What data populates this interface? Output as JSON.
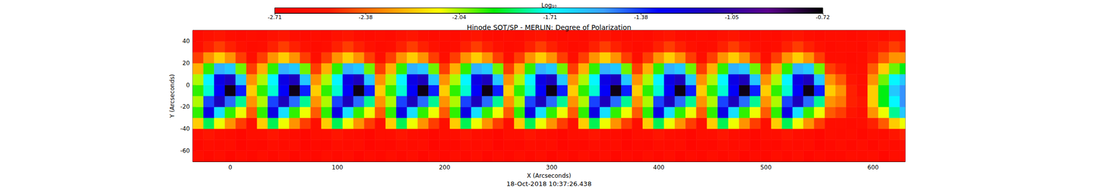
{
  "chart_data": {
    "type": "heatmap",
    "title": "Hinode SOT/SP - MERLIN: Degree of Polarization",
    "xlabel": "X (Arcseconds)",
    "ylabel": "Y (Arcseconds)",
    "annotation": "18-Oct-2018 10:37:26.438",
    "xlim": [
      -35,
      630
    ],
    "ylim": [
      -70,
      50
    ],
    "xticks": [
      0,
      100,
      200,
      300,
      400,
      500,
      600
    ],
    "yticks": [
      -60,
      -40,
      -20,
      0,
      20,
      40
    ],
    "grid": false,
    "colorbar": {
      "label": "Log₁₀",
      "range": [
        -2.71,
        -0.72
      ],
      "ticks": [
        -2.71,
        -2.38,
        -2.04,
        -1.71,
        -1.38,
        -1.05,
        -0.72
      ]
    },
    "x": [
      -30,
      -20,
      -10,
      0,
      10,
      20,
      30,
      40,
      50,
      60,
      70,
      80,
      90,
      100,
      110,
      120,
      130,
      140,
      150,
      160,
      170,
      180,
      190,
      200,
      210,
      220,
      230,
      240,
      250,
      260,
      270,
      280,
      290,
      300,
      310,
      320,
      330,
      340,
      350,
      360,
      370,
      380,
      390,
      400,
      410,
      420,
      430,
      440,
      450,
      460,
      470,
      480,
      490,
      500,
      510,
      520,
      530,
      540,
      550,
      560,
      570,
      580,
      590,
      600,
      610,
      620,
      630
    ],
    "y": [
      -65,
      -55,
      -45,
      -35,
      -25,
      -15,
      -5,
      5,
      15,
      25,
      35,
      45
    ],
    "values": [
      [
        -2.6,
        -2.63,
        -2.6,
        -2.65,
        -2.62,
        -2.64,
        -2.6,
        -2.63,
        -2.6,
        -2.65,
        -2.62,
        -2.64,
        -2.6,
        -2.63,
        -2.6,
        -2.65,
        -2.62,
        -2.64,
        -2.6,
        -2.63,
        -2.6,
        -2.65,
        -2.62,
        -2.64,
        -2.6,
        -2.63,
        -2.6,
        -2.65,
        -2.62,
        -2.64,
        -2.6,
        -2.63,
        -2.6,
        -2.65,
        -2.62,
        -2.64,
        -2.6,
        -2.63,
        -2.6,
        -2.65,
        -2.62,
        -2.64,
        -2.6,
        -2.63,
        -2.6,
        -2.65,
        -2.62,
        -2.64,
        -2.6,
        -2.63,
        -2.6,
        -2.65,
        -2.62,
        -2.64,
        -2.6,
        -2.63,
        -2.6,
        -2.65,
        -2.62,
        -2.64,
        -2.63,
        -2.6,
        -2.62,
        -2.6,
        -2.65,
        -2.6,
        -2.62
      ],
      [
        -2.64,
        -2.6,
        -2.62,
        -2.6,
        -2.66,
        -2.63,
        -2.64,
        -2.6,
        -2.62,
        -2.6,
        -2.66,
        -2.63,
        -2.64,
        -2.6,
        -2.62,
        -2.6,
        -2.66,
        -2.63,
        -2.64,
        -2.6,
        -2.62,
        -2.6,
        -2.66,
        -2.63,
        -2.64,
        -2.6,
        -2.62,
        -2.6,
        -2.66,
        -2.63,
        -2.64,
        -2.6,
        -2.62,
        -2.6,
        -2.66,
        -2.63,
        -2.64,
        -2.6,
        -2.62,
        -2.6,
        -2.66,
        -2.63,
        -2.64,
        -2.6,
        -2.62,
        -2.6,
        -2.66,
        -2.63,
        -2.64,
        -2.6,
        -2.62,
        -2.6,
        -2.66,
        -2.63,
        -2.64,
        -2.6,
        -2.62,
        -2.6,
        -2.66,
        -2.63,
        -2.6,
        -2.63,
        -2.6,
        -2.64,
        -2.6,
        -2.62,
        -2.6
      ],
      [
        -2.6,
        -2.55,
        -2.6,
        -2.62,
        -2.65,
        -2.6,
        -2.6,
        -2.55,
        -2.6,
        -2.62,
        -2.65,
        -2.6,
        -2.6,
        -2.55,
        -2.6,
        -2.62,
        -2.65,
        -2.6,
        -2.6,
        -2.55,
        -2.6,
        -2.62,
        -2.65,
        -2.6,
        -2.6,
        -2.55,
        -2.6,
        -2.62,
        -2.65,
        -2.6,
        -2.6,
        -2.55,
        -2.6,
        -2.62,
        -2.65,
        -2.6,
        -2.6,
        -2.55,
        -2.6,
        -2.62,
        -2.65,
        -2.6,
        -2.6,
        -2.55,
        -2.6,
        -2.62,
        -2.65,
        -2.6,
        -2.6,
        -2.55,
        -2.6,
        -2.62,
        -2.65,
        -2.6,
        -2.6,
        -2.55,
        -2.6,
        -2.62,
        -2.65,
        -2.6,
        -2.62,
        -2.6,
        -2.64,
        -2.6,
        -2.62,
        -2.55,
        -2.5
      ],
      [
        -2.2,
        -1.85,
        -2.1,
        -2.3,
        -2.45,
        -2.6,
        -2.2,
        -1.85,
        -2.1,
        -2.3,
        -2.45,
        -2.6,
        -2.2,
        -1.85,
        -2.1,
        -2.3,
        -2.45,
        -2.6,
        -2.2,
        -1.85,
        -2.1,
        -2.3,
        -2.45,
        -2.6,
        -2.2,
        -1.85,
        -2.1,
        -2.3,
        -2.45,
        -2.6,
        -2.2,
        -1.85,
        -2.1,
        -2.3,
        -2.45,
        -2.6,
        -2.2,
        -1.85,
        -2.1,
        -2.3,
        -2.45,
        -2.6,
        -2.2,
        -1.85,
        -2.1,
        -2.3,
        -2.45,
        -2.6,
        -2.2,
        -1.85,
        -2.1,
        -2.3,
        -2.45,
        -2.6,
        -2.2,
        -1.85,
        -2.1,
        -2.3,
        -2.45,
        -2.6,
        -2.6,
        -2.62,
        -2.6,
        -2.5,
        -2.4,
        -2.2,
        -2.1
      ],
      [
        -1.95,
        -1.25,
        -1.65,
        -1.95,
        -2.1,
        -2.4,
        -1.95,
        -1.25,
        -1.65,
        -1.95,
        -2.1,
        -2.4,
        -1.95,
        -1.25,
        -1.65,
        -1.95,
        -2.1,
        -2.4,
        -1.95,
        -1.25,
        -1.65,
        -1.95,
        -2.1,
        -2.4,
        -1.95,
        -1.25,
        -1.65,
        -1.95,
        -2.1,
        -2.4,
        -1.95,
        -1.25,
        -1.65,
        -1.95,
        -2.1,
        -2.4,
        -1.95,
        -1.25,
        -1.65,
        -1.95,
        -2.1,
        -2.4,
        -1.95,
        -1.25,
        -1.65,
        -1.95,
        -2.1,
        -2.4,
        -1.95,
        -1.25,
        -1.65,
        -1.95,
        -2.1,
        -2.4,
        -1.95,
        -1.25,
        -1.65,
        -1.95,
        -2.1,
        -2.4,
        -2.45,
        -2.55,
        -2.6,
        -2.3,
        -2.1,
        -1.8,
        -1.6
      ],
      [
        -2.05,
        -1.4,
        -1.15,
        -1.45,
        -1.8,
        -2.3,
        -2.05,
        -1.4,
        -1.15,
        -1.45,
        -1.8,
        -2.3,
        -2.05,
        -1.4,
        -1.15,
        -1.45,
        -1.8,
        -2.3,
        -2.05,
        -1.4,
        -1.15,
        -1.45,
        -1.8,
        -2.3,
        -2.05,
        -1.4,
        -1.15,
        -1.45,
        -1.8,
        -2.3,
        -2.05,
        -1.4,
        -1.15,
        -1.45,
        -1.8,
        -2.3,
        -2.05,
        -1.4,
        -1.15,
        -1.45,
        -1.8,
        -2.3,
        -2.05,
        -1.4,
        -1.15,
        -1.45,
        -1.8,
        -2.3,
        -2.05,
        -1.4,
        -1.15,
        -1.45,
        -1.8,
        -2.3,
        -2.05,
        -1.4,
        -1.15,
        -1.45,
        -1.8,
        -2.3,
        -2.35,
        -2.5,
        -2.55,
        -2.2,
        -1.9,
        -1.7,
        -1.5
      ],
      [
        -1.95,
        -1.75,
        -1.3,
        -0.75,
        -1.35,
        -2.2,
        -1.95,
        -1.75,
        -1.3,
        -0.75,
        -1.35,
        -2.2,
        -1.95,
        -1.75,
        -1.3,
        -0.75,
        -1.35,
        -2.2,
        -1.95,
        -1.75,
        -1.3,
        -0.75,
        -1.35,
        -2.2,
        -1.95,
        -1.75,
        -1.3,
        -0.75,
        -1.35,
        -2.2,
        -1.95,
        -1.75,
        -1.3,
        -0.75,
        -1.35,
        -2.2,
        -1.95,
        -1.75,
        -1.3,
        -0.75,
        -1.35,
        -2.2,
        -1.95,
        -1.75,
        -1.3,
        -0.75,
        -1.35,
        -2.2,
        -1.95,
        -1.75,
        -1.3,
        -0.75,
        -1.35,
        -2.2,
        -1.95,
        -1.75,
        -1.3,
        -0.75,
        -1.35,
        -2.2,
        -2.3,
        -2.5,
        -2.6,
        -2.2,
        -1.9,
        -1.6,
        -1.5
      ],
      [
        -2.05,
        -1.7,
        -1.25,
        -1.15,
        -1.6,
        -2.3,
        -2.05,
        -1.7,
        -1.25,
        -1.15,
        -1.6,
        -2.3,
        -2.05,
        -1.7,
        -1.25,
        -1.15,
        -1.6,
        -2.3,
        -2.05,
        -1.7,
        -1.25,
        -1.15,
        -1.6,
        -2.3,
        -2.05,
        -1.7,
        -1.25,
        -1.15,
        -1.6,
        -2.3,
        -2.05,
        -1.7,
        -1.25,
        -1.15,
        -1.6,
        -2.3,
        -2.05,
        -1.7,
        -1.25,
        -1.15,
        -1.6,
        -2.3,
        -2.05,
        -1.7,
        -1.25,
        -1.15,
        -1.6,
        -2.3,
        -2.05,
        -1.7,
        -1.25,
        -1.15,
        -1.6,
        -2.3,
        -2.05,
        -1.7,
        -1.25,
        -1.15,
        -1.6,
        -2.3,
        -2.4,
        -2.55,
        -2.6,
        -2.3,
        -2.0,
        -1.7,
        -1.6
      ],
      [
        -2.25,
        -1.95,
        -1.55,
        -1.6,
        -2.0,
        -2.45,
        -2.25,
        -1.95,
        -1.55,
        -1.6,
        -2.0,
        -2.45,
        -2.25,
        -1.95,
        -1.55,
        -1.6,
        -2.0,
        -2.45,
        -2.25,
        -1.95,
        -1.55,
        -1.6,
        -2.0,
        -2.45,
        -2.25,
        -1.95,
        -1.55,
        -1.6,
        -2.0,
        -2.45,
        -2.25,
        -1.95,
        -1.55,
        -1.6,
        -2.0,
        -2.45,
        -2.25,
        -1.95,
        -1.55,
        -1.6,
        -2.0,
        -2.45,
        -2.25,
        -1.95,
        -1.55,
        -1.6,
        -2.0,
        -2.45,
        -2.25,
        -1.95,
        -1.55,
        -1.6,
        -2.0,
        -2.45,
        -2.25,
        -1.95,
        -1.55,
        -1.6,
        -2.0,
        -2.45,
        -2.5,
        -2.6,
        -2.6,
        -2.4,
        -2.2,
        -2.0,
        -1.9
      ],
      [
        -2.45,
        -2.3,
        -2.2,
        -2.3,
        -2.45,
        -2.6,
        -2.45,
        -2.3,
        -2.2,
        -2.3,
        -2.45,
        -2.6,
        -2.45,
        -2.3,
        -2.2,
        -2.3,
        -2.45,
        -2.6,
        -2.45,
        -2.3,
        -2.2,
        -2.3,
        -2.45,
        -2.6,
        -2.45,
        -2.3,
        -2.2,
        -2.3,
        -2.45,
        -2.6,
        -2.45,
        -2.3,
        -2.2,
        -2.3,
        -2.45,
        -2.6,
        -2.45,
        -2.3,
        -2.2,
        -2.3,
        -2.45,
        -2.6,
        -2.45,
        -2.3,
        -2.2,
        -2.3,
        -2.45,
        -2.6,
        -2.45,
        -2.3,
        -2.2,
        -2.3,
        -2.45,
        -2.6,
        -2.45,
        -2.3,
        -2.2,
        -2.3,
        -2.45,
        -2.6,
        -2.6,
        -2.62,
        -2.6,
        -2.5,
        -2.4,
        -2.3,
        -2.3
      ],
      [
        -2.6,
        -2.5,
        -2.45,
        -2.5,
        -2.58,
        -2.62,
        -2.6,
        -2.5,
        -2.45,
        -2.5,
        -2.58,
        -2.62,
        -2.6,
        -2.5,
        -2.45,
        -2.5,
        -2.58,
        -2.62,
        -2.6,
        -2.5,
        -2.45,
        -2.5,
        -2.58,
        -2.62,
        -2.6,
        -2.5,
        -2.45,
        -2.5,
        -2.58,
        -2.62,
        -2.6,
        -2.5,
        -2.45,
        -2.5,
        -2.58,
        -2.62,
        -2.6,
        -2.5,
        -2.45,
        -2.5,
        -2.58,
        -2.62,
        -2.6,
        -2.5,
        -2.45,
        -2.5,
        -2.58,
        -2.62,
        -2.6,
        -2.5,
        -2.45,
        -2.5,
        -2.58,
        -2.62,
        -2.6,
        -2.5,
        -2.45,
        -2.5,
        -2.58,
        -2.62,
        -2.6,
        -2.6,
        -2.62,
        -2.55,
        -2.5,
        -2.45,
        -2.5
      ],
      [
        -2.62,
        -2.58,
        -2.55,
        -2.6,
        -2.62,
        -2.6,
        -2.62,
        -2.58,
        -2.55,
        -2.6,
        -2.62,
        -2.6,
        -2.62,
        -2.58,
        -2.55,
        -2.6,
        -2.62,
        -2.6,
        -2.62,
        -2.58,
        -2.55,
        -2.6,
        -2.62,
        -2.6,
        -2.62,
        -2.58,
        -2.55,
        -2.6,
        -2.62,
        -2.6,
        -2.62,
        -2.58,
        -2.55,
        -2.6,
        -2.62,
        -2.6,
        -2.62,
        -2.58,
        -2.55,
        -2.6,
        -2.62,
        -2.6,
        -2.62,
        -2.58,
        -2.55,
        -2.6,
        -2.62,
        -2.6,
        -2.62,
        -2.58,
        -2.55,
        -2.6,
        -2.62,
        -2.6,
        -2.62,
        -2.58,
        -2.55,
        -2.6,
        -2.62,
        -2.6,
        -2.6,
        -2.62,
        -2.6,
        -2.58,
        -2.6,
        -2.55,
        -2.6
      ]
    ]
  }
}
